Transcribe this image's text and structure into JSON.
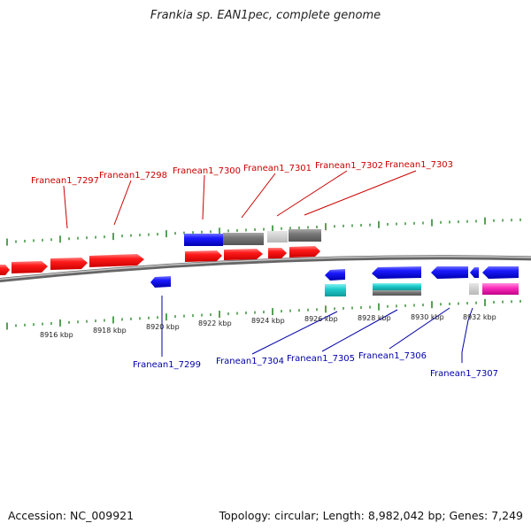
{
  "title": "Frankia sp. EAN1pec, complete genome",
  "footer": {
    "accession": "Accession: NC_009921",
    "summary": "Topology: circular; Length: 8,982,042 bp; Genes: 7,249"
  },
  "colors": {
    "forward_label": "#cc0000",
    "reverse_label": "#0000aa",
    "tick": "#2a8a2a",
    "backbone": "#888888"
  },
  "top_labels": [
    "Franean1_7297",
    "Franean1_7298",
    "Franean1_7300",
    "Franean1_7301",
    "Franean1_7302",
    "Franean1_7303"
  ],
  "bottom_labels": [
    "Franean1_7299",
    "Franean1_7304",
    "Franean1_7305",
    "Franean1_7306",
    "Franean1_7307"
  ],
  "scale_labels": [
    "8916 kbp",
    "8918 kbp",
    "8920 kbp",
    "8922 kbp",
    "8924 kbp",
    "8926 kbp",
    "8928 kbp",
    "8930 kbp",
    "8932 kbp"
  ]
}
